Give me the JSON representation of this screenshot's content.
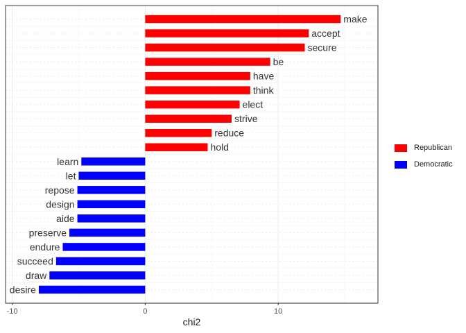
{
  "chart_data": {
    "type": "bar",
    "orientation": "horizontal",
    "xlabel": "chi2",
    "ylabel": "",
    "xlim": [
      -10.5,
      17.5
    ],
    "x_ticks": [
      -10,
      0,
      10
    ],
    "x_tick_labels": [
      "-10",
      "0",
      "10"
    ],
    "grid": true,
    "legend_position": "right",
    "series": [
      {
        "name": "Republican",
        "color": "#ff0000",
        "categories": [
          "make",
          "accept",
          "secure",
          "be",
          "have",
          "think",
          "elect",
          "strive",
          "reduce",
          "hold"
        ],
        "values": [
          14.7,
          12.3,
          12.0,
          9.4,
          7.9,
          7.9,
          7.1,
          6.5,
          5.0,
          4.7
        ]
      },
      {
        "name": "Democratic",
        "color": "#0000ff",
        "categories": [
          "learn",
          "let",
          "repose",
          "design",
          "aide",
          "preserve",
          "endure",
          "succeed",
          "draw",
          "desire"
        ],
        "values": [
          -4.8,
          -5.0,
          -5.1,
          -5.1,
          -5.1,
          -5.7,
          -6.2,
          -6.7,
          -7.2,
          -8.0
        ]
      }
    ]
  }
}
